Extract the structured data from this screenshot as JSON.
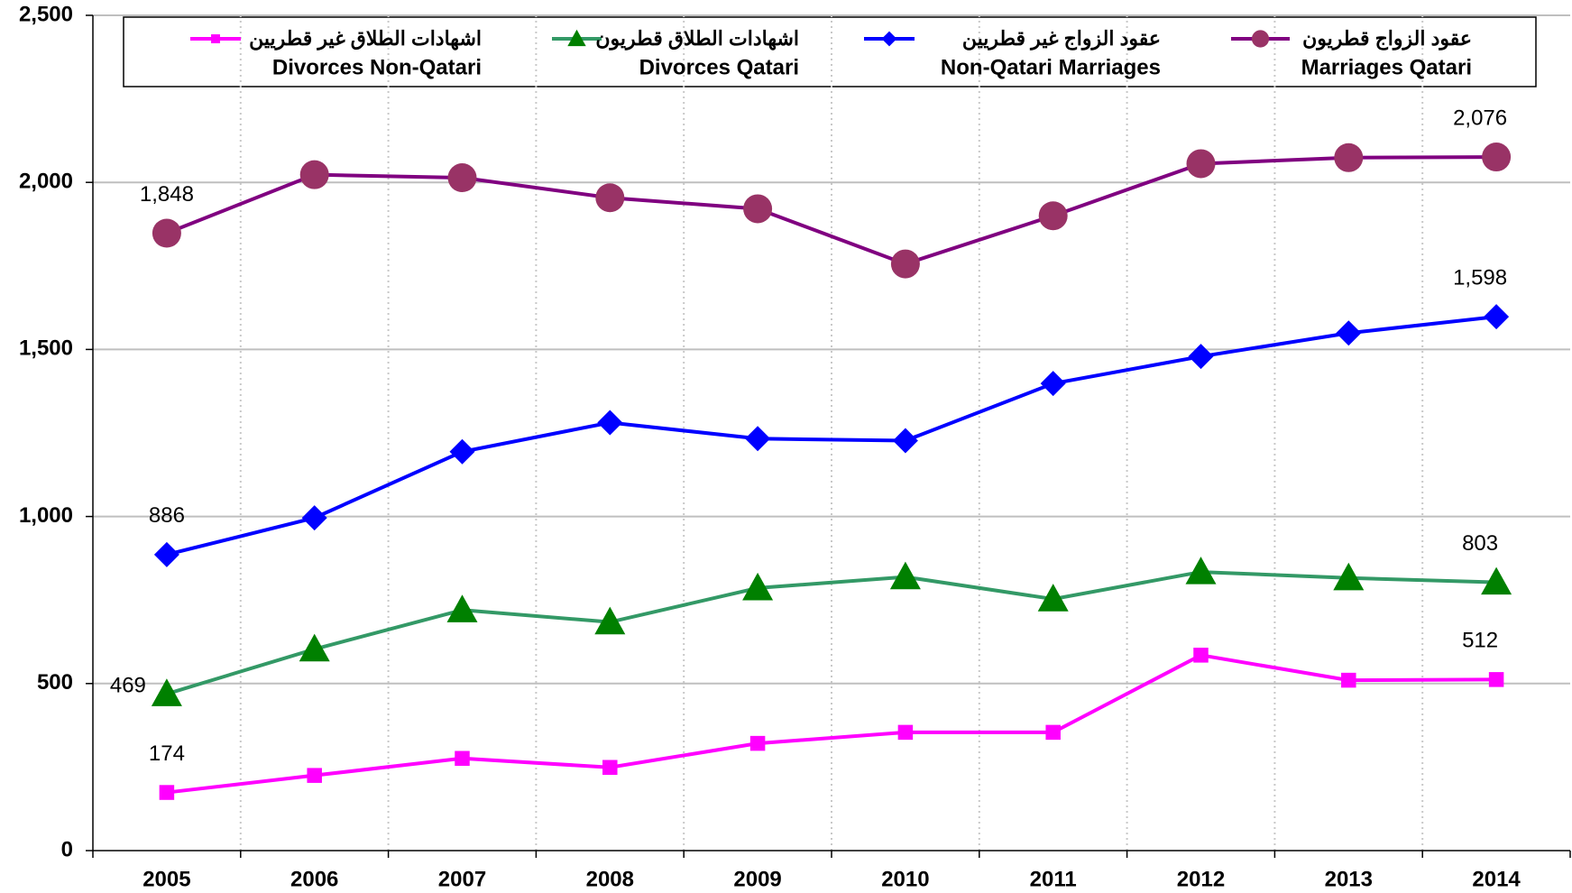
{
  "chart_data": {
    "type": "line",
    "categories": [
      "2005",
      "2006",
      "2007",
      "2008",
      "2009",
      "2010",
      "2011",
      "2012",
      "2013",
      "2014"
    ],
    "series": [
      {
        "name": "Divorces Non-Qatari",
        "name_ar": "اشهادات الطلاق غير قطريين",
        "color": "#ff00ff",
        "line_color": "#ff00ff",
        "marker": "square",
        "values": [
          174,
          225,
          276,
          249,
          321,
          354,
          354,
          585,
          510,
          512
        ],
        "value_labels": [
          "174",
          null,
          null,
          null,
          null,
          null,
          null,
          null,
          null,
          "512"
        ]
      },
      {
        "name": "Divorces Qatari",
        "name_ar": "اشهادات الطلاق قطريون",
        "color": "#008000",
        "line_color": "#339966",
        "marker": "triangle",
        "values": [
          469,
          603,
          720,
          684,
          786,
          819,
          753,
          834,
          816,
          803
        ],
        "value_labels": [
          "469",
          null,
          null,
          null,
          null,
          null,
          null,
          null,
          null,
          "803"
        ]
      },
      {
        "name": "Non-Qatari Marriages",
        "name_ar": "عقود الزواج غير قطريين",
        "color": "#0000ff",
        "line_color": "#0000ff",
        "marker": "diamond",
        "values": [
          886,
          996,
          1194,
          1281,
          1233,
          1227,
          1398,
          1479,
          1549,
          1598
        ],
        "value_labels": [
          "886",
          null,
          null,
          null,
          null,
          null,
          null,
          null,
          null,
          "1,598"
        ]
      },
      {
        "name": "Marriages Qatari",
        "name_ar": "عقود الزواج قطريون",
        "color": "#993366",
        "line_color": "#800080",
        "marker": "circle",
        "values": [
          1848,
          2023,
          2014,
          1954,
          1921,
          1756,
          1900,
          2056,
          2074,
          2076
        ],
        "value_labels": [
          "1,848",
          null,
          null,
          null,
          null,
          null,
          null,
          null,
          null,
          "2,076"
        ]
      }
    ],
    "ylim": [
      0,
      2500
    ],
    "yticks": [
      0,
      500,
      {
        "value": 1000,
        "label": "1,000"
      },
      {
        "value": 1500,
        "label": "1,500"
      },
      {
        "value": 2000,
        "label": "2,000"
      },
      {
        "value": 2500,
        "label": "2,500"
      }
    ],
    "grid": true,
    "legend": "top"
  }
}
